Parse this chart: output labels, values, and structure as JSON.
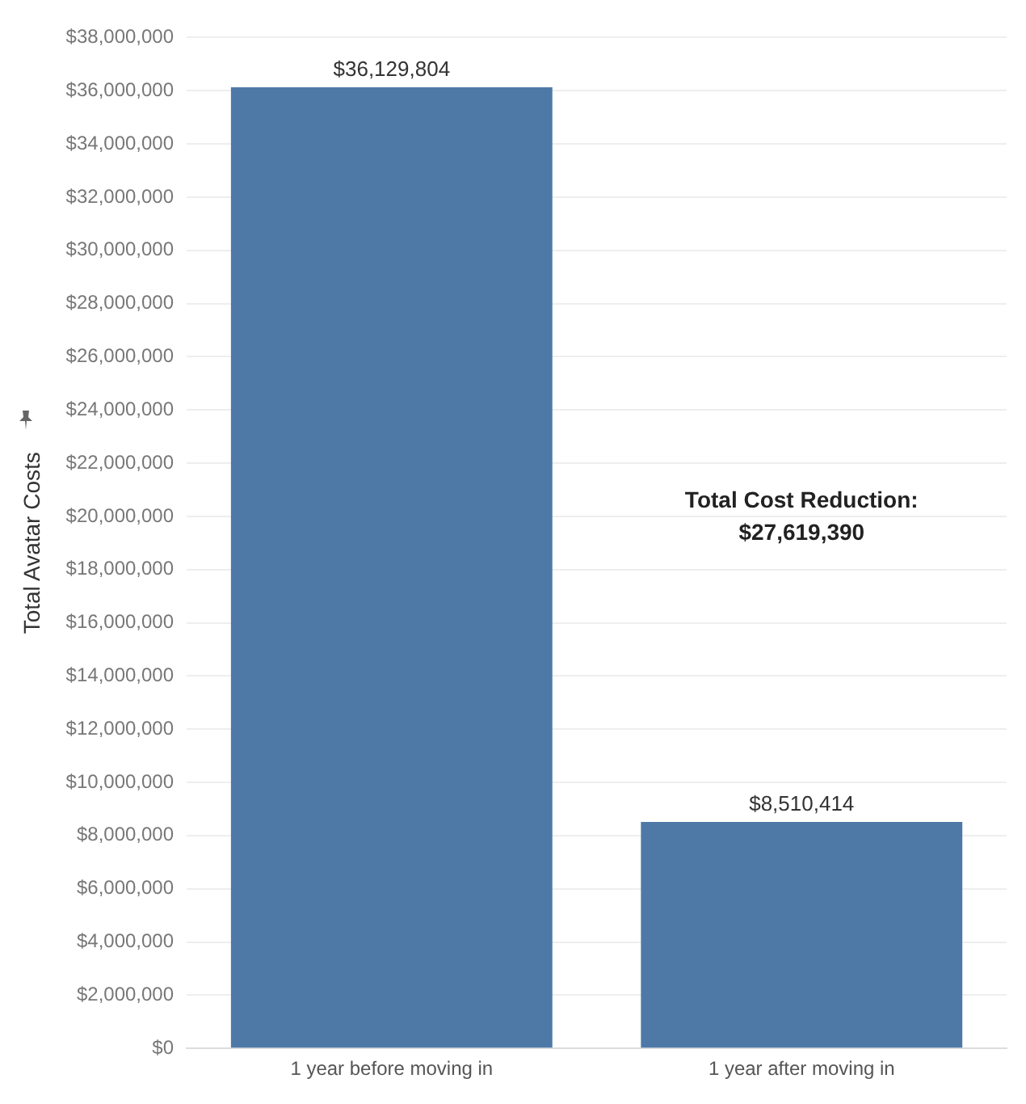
{
  "chart_data": {
    "type": "bar",
    "ylabel": "Total Avatar Costs",
    "categories": [
      "1 year before moving in",
      "1 year after moving in"
    ],
    "values": [
      36129804,
      8510414
    ],
    "value_labels": [
      "$36,129,804",
      "$8,510,414"
    ],
    "color": "#4e79a7",
    "ylim": [
      0,
      38000000
    ],
    "yticks": [
      {
        "value": 0,
        "label": "$0"
      },
      {
        "value": 2000000,
        "label": "$2,000,000"
      },
      {
        "value": 4000000,
        "label": "$4,000,000"
      },
      {
        "value": 6000000,
        "label": "$6,000,000"
      },
      {
        "value": 8000000,
        "label": "$8,000,000"
      },
      {
        "value": 10000000,
        "label": "$10,000,000"
      },
      {
        "value": 12000000,
        "label": "$12,000,000"
      },
      {
        "value": 14000000,
        "label": "$14,000,000"
      },
      {
        "value": 16000000,
        "label": "$16,000,000"
      },
      {
        "value": 18000000,
        "label": "$18,000,000"
      },
      {
        "value": 20000000,
        "label": "$20,000,000"
      },
      {
        "value": 22000000,
        "label": "$22,000,000"
      },
      {
        "value": 24000000,
        "label": "$24,000,000"
      },
      {
        "value": 26000000,
        "label": "$26,000,000"
      },
      {
        "value": 28000000,
        "label": "$28,000,000"
      },
      {
        "value": 30000000,
        "label": "$30,000,000"
      },
      {
        "value": 32000000,
        "label": "$32,000,000"
      },
      {
        "value": 34000000,
        "label": "$34,000,000"
      },
      {
        "value": 36000000,
        "label": "$36,000,000"
      },
      {
        "value": 38000000,
        "label": "$38,000,000"
      }
    ],
    "grid": "y",
    "annotations": [
      "Total Cost Reduction:\n$27,619,390"
    ]
  }
}
